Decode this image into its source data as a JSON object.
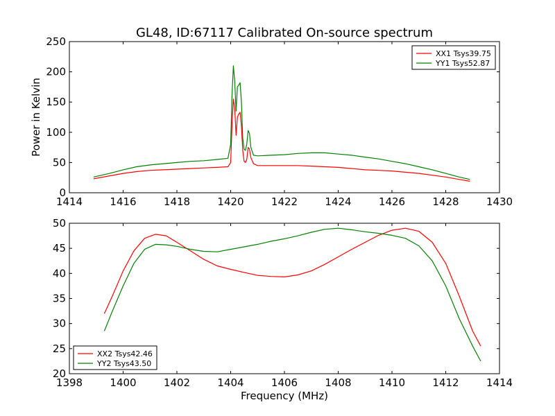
{
  "figure": {
    "title": "GL48, ID:67117 Calibrated On-source spectrum"
  },
  "chart_data": [
    {
      "type": "line",
      "title": "GL48, ID:67117 Calibrated On-source spectrum",
      "xlabel": "",
      "ylabel": "Power in Kelvin",
      "xlim": [
        1414,
        1430
      ],
      "ylim": [
        0,
        250
      ],
      "xticks": [
        1414,
        1416,
        1418,
        1420,
        1422,
        1424,
        1426,
        1428,
        1430
      ],
      "yticks": [
        0,
        50,
        100,
        150,
        200,
        250
      ],
      "grid": false,
      "legend": "top-right",
      "series": [
        {
          "name": "XX1 Tsys39.75",
          "color": "#ff0000",
          "x": [
            1414.9,
            1415.5,
            1416,
            1416.5,
            1417,
            1417.5,
            1418,
            1418.5,
            1419,
            1419.5,
            1419.9,
            1420.0,
            1420.05,
            1420.1,
            1420.15,
            1420.2,
            1420.25,
            1420.3,
            1420.35,
            1420.4,
            1420.45,
            1420.5,
            1420.55,
            1420.6,
            1420.65,
            1420.7,
            1420.75,
            1420.85,
            1421.0,
            1421.5,
            1422,
            1422.5,
            1423,
            1423.5,
            1424,
            1424.5,
            1425,
            1425.5,
            1426,
            1426.5,
            1427,
            1427.5,
            1428,
            1428.5,
            1428.9
          ],
          "y": [
            23,
            28,
            32,
            35,
            37,
            38,
            39,
            40,
            41,
            42,
            43,
            50,
            110,
            155,
            140,
            95,
            125,
            130,
            133,
            110,
            70,
            52,
            50,
            55,
            75,
            72,
            58,
            48,
            45,
            45,
            45,
            45,
            44,
            43,
            42,
            40,
            38,
            37,
            36,
            34,
            32,
            29,
            26,
            22,
            19
          ]
        },
        {
          "name": "YY1 Tsys52.87",
          "color": "#008000",
          "x": [
            1414.9,
            1415.5,
            1416,
            1416.5,
            1417,
            1417.5,
            1418,
            1418.5,
            1419,
            1419.5,
            1419.9,
            1420.0,
            1420.05,
            1420.1,
            1420.15,
            1420.2,
            1420.25,
            1420.3,
            1420.35,
            1420.4,
            1420.45,
            1420.5,
            1420.55,
            1420.6,
            1420.65,
            1420.7,
            1420.75,
            1420.85,
            1421.0,
            1421.5,
            1422,
            1422.5,
            1423,
            1423.5,
            1424,
            1424.5,
            1425,
            1425.5,
            1426,
            1426.5,
            1427,
            1427.5,
            1428,
            1428.5,
            1428.9
          ],
          "y": [
            26,
            32,
            38,
            43,
            46,
            48,
            50,
            52,
            53,
            55,
            57,
            80,
            160,
            210,
            185,
            135,
            175,
            178,
            182,
            150,
            90,
            72,
            70,
            80,
            103,
            98,
            75,
            62,
            61,
            62,
            63,
            65,
            66,
            66,
            64,
            62,
            59,
            56,
            52,
            48,
            43,
            38,
            32,
            26,
            22
          ]
        }
      ]
    },
    {
      "type": "line",
      "title": "",
      "xlabel": "Frequency (MHz)",
      "ylabel": "",
      "xlim": [
        1398,
        1414
      ],
      "ylim": [
        20,
        50
      ],
      "xticks": [
        1398,
        1400,
        1402,
        1404,
        1406,
        1408,
        1410,
        1412,
        1414
      ],
      "yticks": [
        20,
        25,
        30,
        35,
        40,
        45,
        50
      ],
      "grid": false,
      "legend": "bottom-left",
      "series": [
        {
          "name": "XX2 Tsys42.46",
          "color": "#ff0000",
          "x": [
            1399.3,
            1399.6,
            1400,
            1400.4,
            1400.8,
            1401.2,
            1401.6,
            1402,
            1402.5,
            1403,
            1403.5,
            1404,
            1404.5,
            1405,
            1405.5,
            1406,
            1406.5,
            1407,
            1407.5,
            1408,
            1408.5,
            1409,
            1409.5,
            1410,
            1410.5,
            1411,
            1411.5,
            1412,
            1412.5,
            1413,
            1413.3
          ],
          "y": [
            32,
            35.5,
            40.5,
            44.5,
            47,
            47.8,
            47.5,
            46.2,
            44.5,
            42.8,
            41.5,
            40.8,
            40.2,
            39.6,
            39.4,
            39.3,
            39.7,
            40.5,
            41.8,
            43.3,
            44.8,
            46.2,
            47.6,
            48.6,
            49,
            48.4,
            46.2,
            42,
            35.5,
            28.5,
            25.5
          ]
        },
        {
          "name": "YY2 Tsys43.50",
          "color": "#008000",
          "x": [
            1399.3,
            1399.6,
            1400,
            1400.4,
            1400.8,
            1401.2,
            1401.6,
            1402,
            1402.5,
            1403,
            1403.5,
            1404,
            1404.5,
            1405,
            1405.5,
            1406,
            1406.5,
            1407,
            1407.5,
            1408,
            1408.5,
            1409,
            1409.5,
            1410,
            1410.5,
            1411,
            1411.5,
            1412,
            1412.5,
            1413,
            1413.3
          ],
          "y": [
            28.5,
            32.5,
            37.5,
            42,
            44.8,
            45.8,
            45.7,
            45.4,
            44.8,
            44.4,
            44.3,
            44.8,
            45.3,
            45.8,
            46.4,
            46.9,
            47.5,
            48.2,
            48.8,
            49,
            48.7,
            48.3,
            48,
            47.6,
            47,
            45.5,
            42.5,
            37.5,
            31,
            25.5,
            22.5
          ]
        }
      ]
    }
  ]
}
